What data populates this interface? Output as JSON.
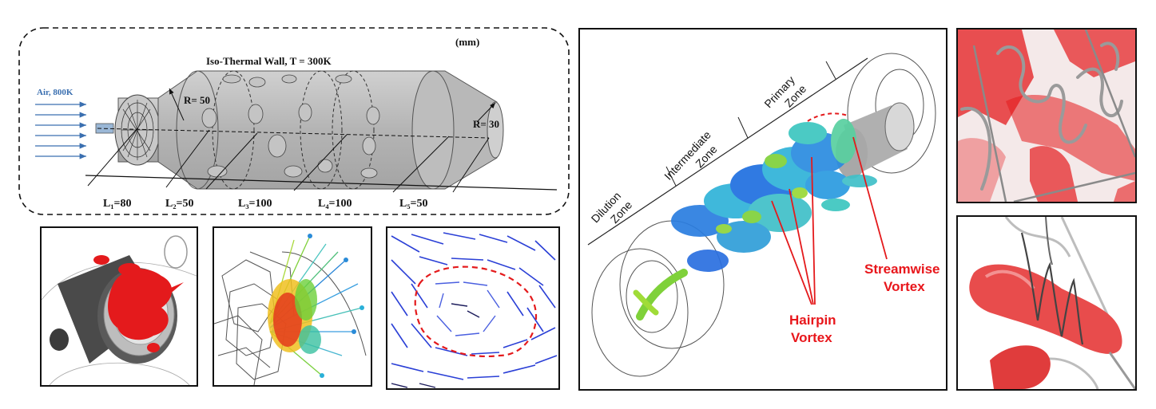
{
  "schematic": {
    "unit_label": "(mm)",
    "wall_label": "Iso-Thermal Wall, T = 300K",
    "inlet_label": "Air, 800K",
    "radius_large": "R= 50",
    "radius_small": "R= 30",
    "lengths": [
      {
        "label": "L₁=80"
      },
      {
        "label": "L₂=50"
      },
      {
        "label": "L₃=100"
      },
      {
        "label": "L₄=100"
      },
      {
        "label": "L₅=50"
      }
    ]
  },
  "main_view": {
    "zones": {
      "dilution_line1": "Dilution",
      "dilution_line2": "Zone",
      "intermediate_line1": "Intermediate",
      "intermediate_line2": "Zone",
      "primary_line1": "Primary",
      "primary_line2": "Zone"
    },
    "annotations": {
      "streamwise_line1": "Streamwise",
      "streamwise_line2": "Vortex",
      "hairpin_line1": "Hairpin",
      "hairpin_line2": "Vortex"
    },
    "annotation_color": "#e8161b"
  },
  "colors": {
    "isosurface_red": "#e41a1c",
    "arrow_blue": "#2a3fd6",
    "combustor_gray": "#b8b8b8",
    "inlet_arrow": "#3a6fb0"
  }
}
